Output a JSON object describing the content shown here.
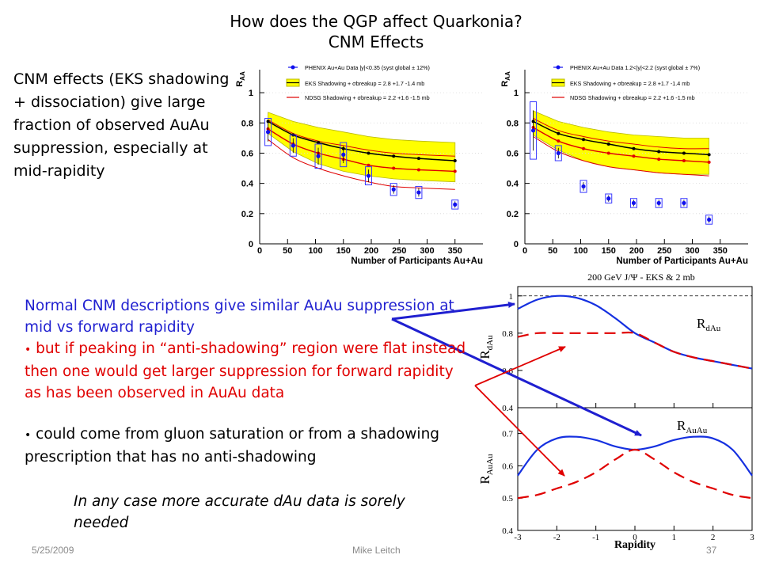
{
  "slide": {
    "title_line1": "How does the QGP affect Quarkonia?",
    "title_line2": "CNM Effects",
    "left_text": "CNM effects (EKS shadowing + dissociation) give large fraction of observed AuAu suppression, especially at mid-rapidity",
    "blue_text": "Normal CNM descriptions give similar AuAu suppression at mid vs forward rapidity",
    "red_bullet": "but if peaking in “anti-shadowing” region were flat instead then one would get larger suppression for forward rapidity as has been observed in AuAu data",
    "black_bullet": "could come from gluon saturation or from a shadowing prescription that has no anti-shadowing",
    "italic_note": "In any case more accurate dAu data is sorely needed",
    "footer_date": "5/25/2009",
    "footer_author": "Mike Leitch",
    "footer_page": "37",
    "bullet_char": "•",
    "colors": {
      "blue_text": "#1f1fd0",
      "red_text": "#e00000",
      "band": "#ffff00",
      "band_edge": "#b8b800"
    }
  },
  "chart_data": [
    {
      "type": "line",
      "ylabel": "R_AA",
      "ylabel_main": "R",
      "ylabel_sub": "AA",
      "xlabel": "Number of Participants Au+Au",
      "xlim": [
        0,
        400
      ],
      "ylim": [
        0,
        1.1
      ],
      "xticks": [
        0,
        50,
        100,
        150,
        200,
        250,
        300,
        350
      ],
      "yticks": [
        0,
        0.2,
        0.4,
        0.6,
        0.8,
        1
      ],
      "legend_position": "top",
      "legend": [
        "PHENIX Au+Au Data |y|<0.35 (syst global ± 12%)",
        "EKS Shadowing + σbreakup = 2.8 +1.7 -1.4 mb",
        "NDSG Shadowing + σbreakup = 2.2 +1.6 -1.5 mb"
      ],
      "series": [
        {
          "name": "PHENIX Au+Au Data |y|<0.35",
          "style": "points",
          "x": [
            15,
            60,
            105,
            150,
            195,
            240,
            285,
            350
          ],
          "y": [
            0.74,
            0.65,
            0.58,
            0.59,
            0.45,
            0.36,
            0.34,
            0.26
          ],
          "sys_err": [
            0.09,
            0.07,
            0.08,
            0.08,
            0.06,
            0.04,
            0.04,
            0.03
          ]
        },
        {
          "name": "EKS Shadowing central",
          "style": "line",
          "x": [
            15,
            60,
            105,
            150,
            195,
            240,
            285,
            350
          ],
          "y": [
            0.81,
            0.72,
            0.67,
            0.63,
            0.6,
            0.58,
            0.565,
            0.55
          ]
        },
        {
          "name": "EKS band upper",
          "style": "band_upper",
          "x": [
            15,
            60,
            105,
            150,
            195,
            240,
            285,
            350
          ],
          "y": [
            0.87,
            0.81,
            0.77,
            0.74,
            0.71,
            0.69,
            0.68,
            0.67
          ]
        },
        {
          "name": "EKS band lower",
          "style": "band_lower",
          "x": [
            15,
            60,
            105,
            150,
            195,
            240,
            285,
            350
          ],
          "y": [
            0.73,
            0.61,
            0.53,
            0.48,
            0.45,
            0.43,
            0.42,
            0.41
          ]
        },
        {
          "name": "NDSG Shadowing central",
          "style": "points_red",
          "x": [
            15,
            60,
            105,
            150,
            195,
            240,
            285,
            350
          ],
          "y": [
            0.76,
            0.66,
            0.6,
            0.56,
            0.52,
            0.5,
            0.49,
            0.48
          ]
        },
        {
          "name": "NDSG Shadowing upper",
          "style": "red_thin",
          "x": [
            15,
            60,
            105,
            150,
            195,
            240,
            285,
            350
          ],
          "y": [
            0.82,
            0.73,
            0.68,
            0.65,
            0.62,
            0.6,
            0.59,
            0.58
          ]
        },
        {
          "name": "NDSG Shadowing lower",
          "style": "red_thin",
          "x": [
            15,
            60,
            105,
            150,
            195,
            240,
            285,
            350
          ],
          "y": [
            0.69,
            0.57,
            0.5,
            0.45,
            0.41,
            0.38,
            0.37,
            0.36
          ]
        }
      ]
    },
    {
      "type": "line",
      "ylabel": "R_AA",
      "ylabel_main": "R",
      "ylabel_sub": "AA",
      "xlabel": "Number of Participants Au+Au",
      "xlim": [
        0,
        400
      ],
      "ylim": [
        0,
        1.1
      ],
      "xticks": [
        0,
        50,
        100,
        150,
        200,
        250,
        300,
        350
      ],
      "yticks": [
        0,
        0.2,
        0.4,
        0.6,
        0.8,
        1
      ],
      "legend_position": "top",
      "legend": [
        "PHENIX Au+Au Data 1.2<|y|<2.2 (syst global ± 7%)",
        "EKS Shadowing + σbreakup = 2.8 +1.7 -1.4 mb",
        "NDSG Shadowing + σbreakup = 2.2 +1.6 -1.5 mb"
      ],
      "series": [
        {
          "name": "PHENIX Au+Au Data 1.2<|y|<2.2",
          "style": "points",
          "x": [
            15,
            60,
            105,
            150,
            195,
            240,
            285,
            330
          ],
          "y": [
            0.75,
            0.6,
            0.38,
            0.3,
            0.27,
            0.27,
            0.27,
            0.16
          ],
          "sys_err": [
            0.19,
            0.05,
            0.04,
            0.03,
            0.03,
            0.03,
            0.03,
            0.03
          ]
        },
        {
          "name": "EKS Shadowing central",
          "style": "line",
          "x": [
            15,
            60,
            105,
            150,
            195,
            240,
            285,
            330
          ],
          "y": [
            0.81,
            0.73,
            0.69,
            0.66,
            0.63,
            0.61,
            0.6,
            0.59
          ]
        },
        {
          "name": "EKS band upper",
          "style": "band_upper",
          "x": [
            15,
            60,
            105,
            150,
            195,
            240,
            285,
            330
          ],
          "y": [
            0.88,
            0.81,
            0.77,
            0.74,
            0.72,
            0.71,
            0.7,
            0.7
          ]
        },
        {
          "name": "EKS band lower",
          "style": "band_lower",
          "x": [
            15,
            60,
            105,
            150,
            195,
            240,
            285,
            330
          ],
          "y": [
            0.72,
            0.62,
            0.55,
            0.51,
            0.49,
            0.47,
            0.46,
            0.46
          ]
        },
        {
          "name": "NDSG Shadowing central",
          "style": "points_red",
          "x": [
            15,
            60,
            105,
            150,
            195,
            240,
            285,
            330
          ],
          "y": [
            0.77,
            0.68,
            0.63,
            0.6,
            0.58,
            0.56,
            0.55,
            0.54
          ]
        },
        {
          "name": "NDSG Shadowing upper",
          "style": "red_thin",
          "x": [
            15,
            60,
            105,
            150,
            195,
            240,
            285,
            330
          ],
          "y": [
            0.83,
            0.75,
            0.71,
            0.68,
            0.66,
            0.64,
            0.63,
            0.63
          ]
        },
        {
          "name": "NDSG Shadowing lower",
          "style": "red_thin",
          "x": [
            15,
            60,
            105,
            150,
            195,
            240,
            285,
            330
          ],
          "y": [
            0.71,
            0.61,
            0.55,
            0.51,
            0.49,
            0.47,
            0.46,
            0.45
          ]
        }
      ]
    },
    {
      "type": "line",
      "title": "200 GeV J/Ψ - EKS & 2 mb",
      "panels": [
        {
          "ylabel": "R_dAu",
          "ylabel_main": "R",
          "ylabel_sub": "dAu",
          "label": "R_dAu",
          "label_main": "R",
          "label_sub": "dAu",
          "ylim": [
            0.4,
            1.05
          ],
          "yticks": [
            0.4,
            0.6,
            0.8,
            1
          ],
          "reference_line": 1,
          "series": [
            {
              "name": "EKS",
              "style": "blue_solid",
              "x": [
                -3,
                -2.5,
                -2,
                -1.5,
                -1,
                -0.5,
                0,
                0.5,
                1,
                1.5,
                2,
                2.5,
                3
              ],
              "y": [
                0.93,
                0.98,
                1.0,
                0.99,
                0.95,
                0.88,
                0.8,
                0.75,
                0.7,
                0.67,
                0.65,
                0.63,
                0.61
              ]
            },
            {
              "name": "flat anti-shadowing",
              "style": "red_dashed",
              "x": [
                -3,
                -2.5,
                -2,
                -1.5,
                -1,
                -0.5,
                0,
                0.5,
                1,
                1.5,
                2,
                2.5,
                3
              ],
              "y": [
                0.78,
                0.8,
                0.8,
                0.8,
                0.8,
                0.8,
                0.8,
                0.75,
                0.7,
                0.67,
                0.65,
                0.63,
                0.61
              ]
            }
          ]
        },
        {
          "ylabel": "R_AuAu",
          "ylabel_main": "R",
          "ylabel_sub": "AuAu",
          "label": "R_AuAu",
          "label_main": "R",
          "label_sub": "AuAu",
          "xlabel": "Rapidity",
          "xlim": [
            -3,
            3
          ],
          "xticks": [
            -3,
            -2,
            -1,
            0,
            1,
            2,
            3
          ],
          "ylim": [
            0.4,
            0.78
          ],
          "yticks": [
            0.4,
            0.5,
            0.6,
            0.7
          ],
          "series": [
            {
              "name": "EKS",
              "style": "blue_solid",
              "x": [
                -3,
                -2.5,
                -2,
                -1.5,
                -1,
                -0.5,
                0,
                0.5,
                1,
                1.5,
                2,
                2.5,
                3
              ],
              "y": [
                0.57,
                0.65,
                0.685,
                0.69,
                0.68,
                0.66,
                0.65,
                0.66,
                0.68,
                0.69,
                0.685,
                0.65,
                0.57
              ]
            },
            {
              "name": "flat anti-shadowing",
              "style": "red_dashed",
              "x": [
                -3,
                -2.5,
                -2,
                -1.5,
                -1,
                -0.5,
                0,
                0.5,
                1,
                1.5,
                2,
                2.5,
                3
              ],
              "y": [
                0.5,
                0.51,
                0.53,
                0.55,
                0.58,
                0.62,
                0.65,
                0.62,
                0.58,
                0.55,
                0.53,
                0.51,
                0.5
              ]
            }
          ]
        }
      ]
    }
  ]
}
